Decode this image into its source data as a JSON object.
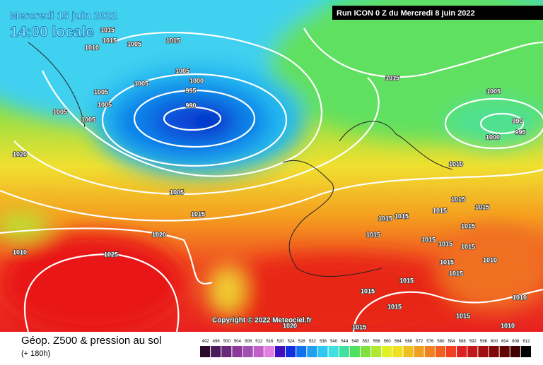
{
  "header": {
    "date": "Mercredi 15 juin 2022",
    "time": "14:00 locale",
    "run": "Run ICON 0 Z du Mercredi 8 juin 2022"
  },
  "copyright": "Copyright © 2022 Meteociel.fr",
  "isobar_labels": [
    "1015",
    "1015",
    "1005",
    "1015",
    "1010",
    "1005",
    "1000",
    "1005",
    "995",
    "1005",
    "1005",
    "990",
    "1005",
    "1005",
    "1015",
    "1005",
    "990",
    "995",
    "1000",
    "1020",
    "1010",
    "1005",
    "1015",
    "1015",
    "1015",
    "1015",
    "1015",
    "1015",
    "1015",
    "1015",
    "1020",
    "1010",
    "1025",
    "1015",
    "1015",
    "1015",
    "1015",
    "1010",
    "1015",
    "1015",
    "1015",
    "1015",
    "1015",
    "1010",
    "1015",
    "1020",
    "1010"
  ],
  "legend": {
    "title": "Géop. Z500 & pression au sol",
    "subtitle": "(+ 180h)",
    "scale": [
      492,
      496,
      500,
      504,
      508,
      512,
      516,
      520,
      524,
      528,
      532,
      536,
      540,
      544,
      548,
      552,
      556,
      560,
      564,
      568,
      572,
      576,
      580,
      584,
      588,
      592,
      596,
      600,
      604,
      608,
      612
    ]
  }
}
